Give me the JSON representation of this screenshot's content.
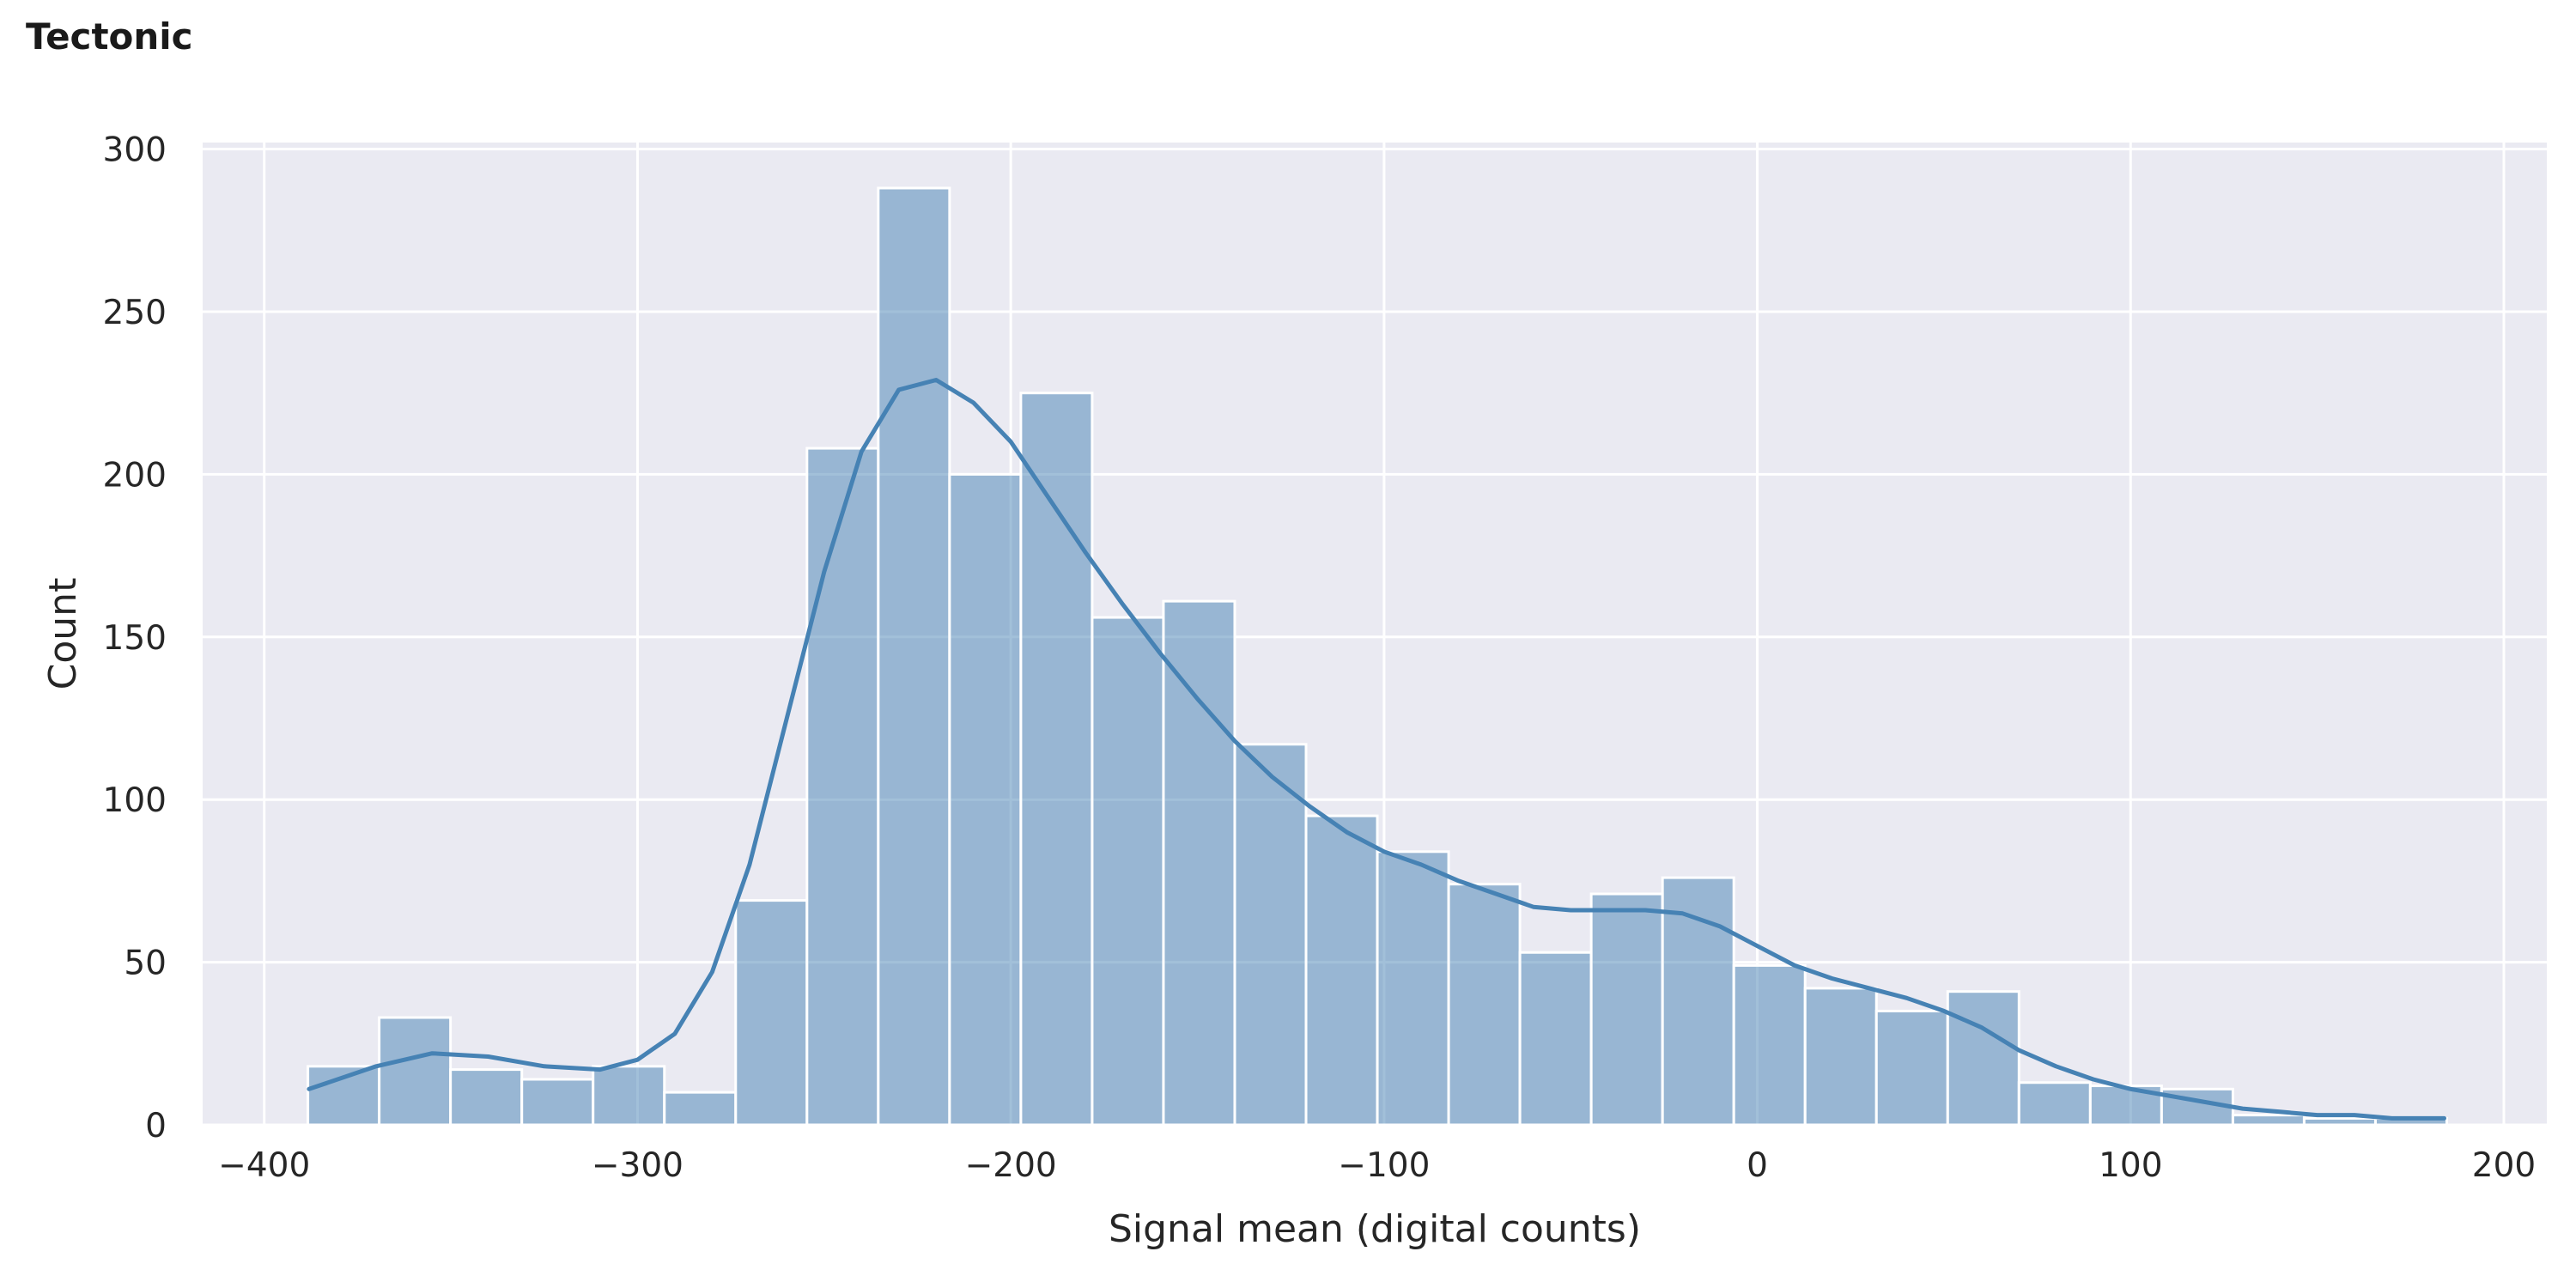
{
  "title": "Tectonic",
  "chart_data": {
    "type": "bar",
    "subtype": "histogram",
    "title": "Tectonic",
    "xlabel": "Signal mean (digital counts)",
    "ylabel": "Count",
    "xlim": [
      -416.5,
      211.5
    ],
    "ylim": [
      0,
      302
    ],
    "xticks": [
      -400,
      -300,
      -200,
      -100,
      0,
      100,
      200
    ],
    "xtick_labels": [
      "−400",
      "−300",
      "−200",
      "−100",
      "0",
      "100",
      "200"
    ],
    "yticks": [
      0,
      50,
      100,
      150,
      200,
      250,
      300
    ],
    "ytick_labels": [
      "0",
      "50",
      "100",
      "150",
      "200",
      "250",
      "300"
    ],
    "grid": true,
    "legend": "none",
    "bin_edges": [
      -388.3,
      -369.2,
      -350.1,
      -331.0,
      -311.9,
      -292.8,
      -273.7,
      -254.6,
      -235.5,
      -216.4,
      -197.3,
      -178.2,
      -159.1,
      -140.0,
      -120.9,
      -101.8,
      -82.7,
      -63.6,
      -44.5,
      -25.4,
      -6.3,
      12.8,
      31.9,
      51.0,
      70.1,
      89.2,
      108.3,
      127.4,
      146.5,
      165.6,
      184.7
    ],
    "counts": [
      18,
      33,
      17,
      14,
      18,
      10,
      69,
      208,
      288,
      200,
      225,
      156,
      161,
      117,
      95,
      84,
      74,
      53,
      71,
      76,
      49,
      42,
      35,
      41,
      13,
      12,
      11,
      3,
      2,
      2
    ],
    "kde": {
      "x": [
        -388,
        -370,
        -355,
        -340,
        -325,
        -310,
        -300,
        -290,
        -280,
        -270,
        -260,
        -250,
        -240,
        -230,
        -220,
        -210,
        -200,
        -190,
        -180,
        -170,
        -160,
        -150,
        -140,
        -130,
        -120,
        -110,
        -100,
        -90,
        -80,
        -70,
        -60,
        -50,
        -40,
        -30,
        -20,
        -10,
        0,
        10,
        20,
        30,
        40,
        50,
        60,
        70,
        80,
        90,
        100,
        110,
        120,
        130,
        140,
        150,
        160,
        170,
        184
      ],
      "y": [
        11,
        18,
        22,
        21,
        18,
        17,
        20,
        28,
        47,
        80,
        125,
        170,
        207,
        226,
        229,
        222,
        210,
        193,
        176,
        160,
        145,
        131,
        118,
        107,
        98,
        90,
        84,
        80,
        75,
        71,
        67,
        66,
        66,
        66,
        65,
        61,
        55,
        49,
        45,
        42,
        39,
        35,
        30,
        23,
        18,
        14,
        11,
        9,
        7,
        5,
        4,
        3,
        3,
        2,
        2
      ]
    },
    "colors": {
      "bar": "#4682b4",
      "bar_opacity": 0.5,
      "bar_edge": "#ffffff",
      "kde": "#4682b4",
      "plot_bg": "#eaeaf2",
      "grid": "#ffffff"
    }
  }
}
